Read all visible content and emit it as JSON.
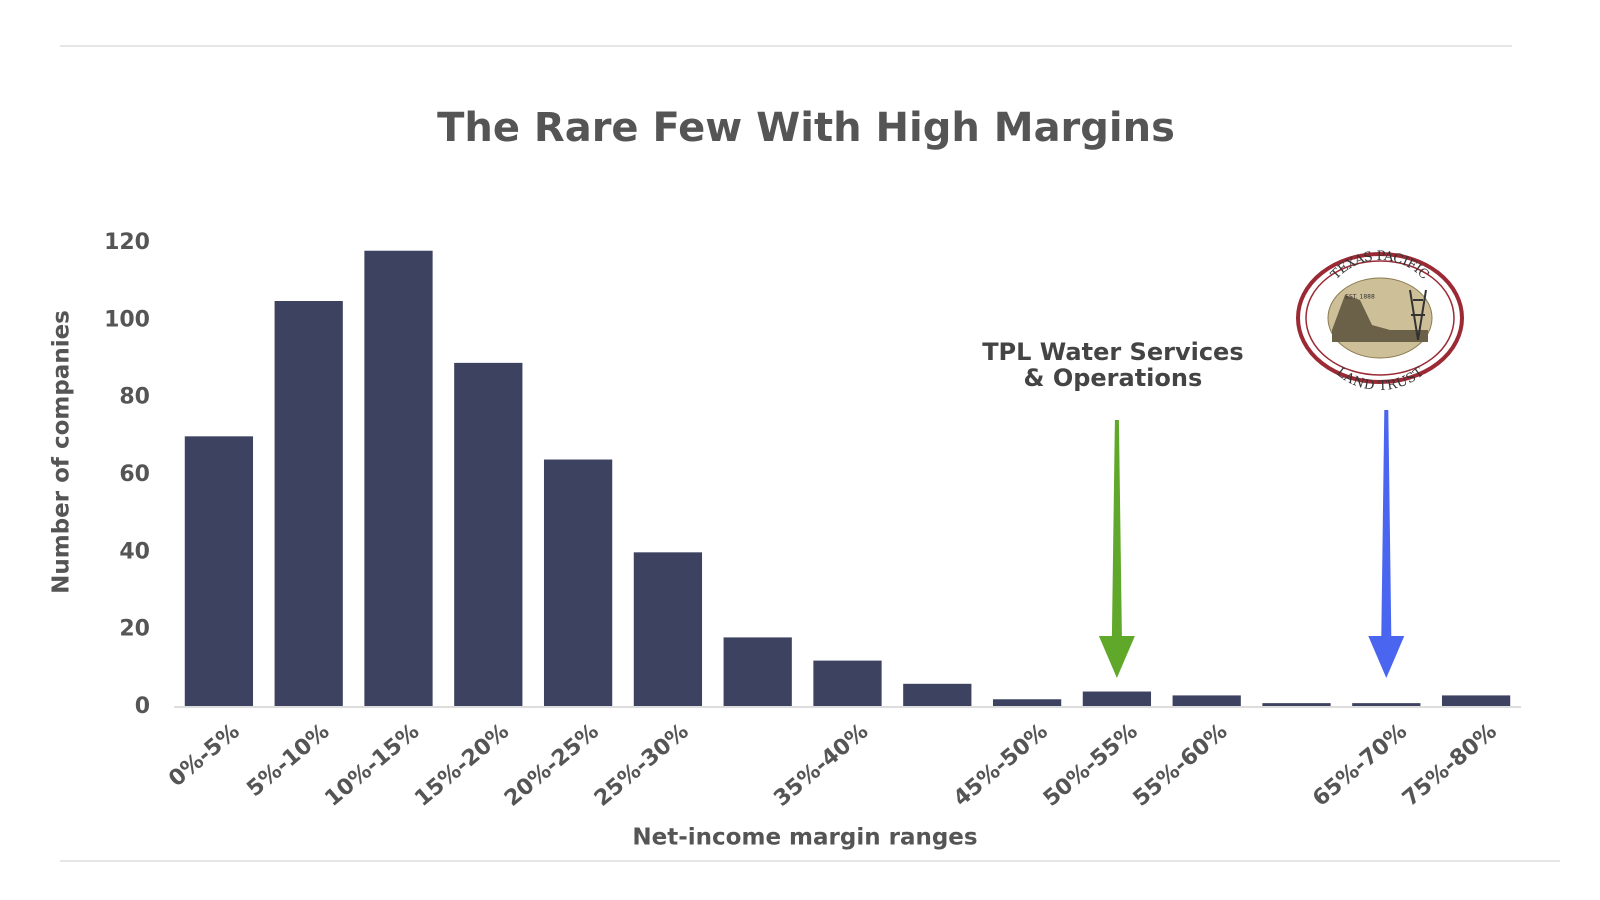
{
  "chart_data": {
    "type": "bar",
    "title": "The Rare Few With High Margins",
    "x_label": "Net-income margin ranges",
    "y_label": "Number of companies",
    "categories": [
      "0%-5%",
      "5%-10%",
      "10%-15%",
      "15%-20%",
      "20%-25%",
      "25%-30%",
      null,
      "35%-40%",
      null,
      "45%-50%",
      "50%-55%",
      "55%-60%",
      null,
      "65%-70%",
      "75%-80%"
    ],
    "values": [
      70,
      105,
      118,
      89,
      64,
      40,
      18,
      12,
      6,
      2,
      4,
      3,
      1,
      1,
      3
    ],
    "color": "#3d4260",
    "ylim": [
      0,
      120
    ],
    "yticks": [
      0,
      20,
      40,
      60,
      80,
      100,
      120
    ],
    "grid": false,
    "annotations": [
      {
        "lines": [
          "TPL Water Services",
          "& Operations"
        ],
        "category_index": 10,
        "color": "#5fa829"
      },
      {
        "category_index": 13,
        "color": "#4a66f0"
      }
    ],
    "logo": {
      "top": "TEXAS PACIFIC",
      "bottom": "LAND TRUST",
      "est": "EST. 1888"
    }
  }
}
